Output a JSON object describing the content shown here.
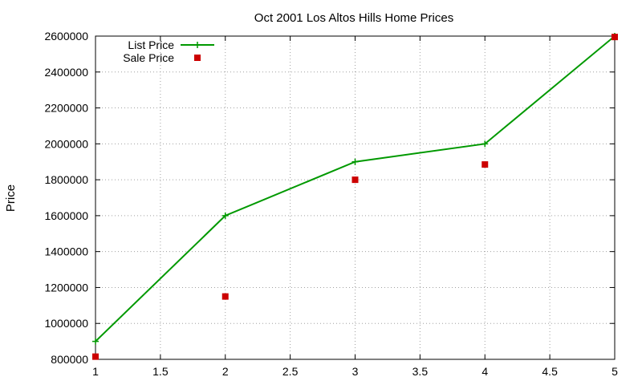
{
  "chart_data": {
    "type": "line",
    "title": "Oct 2001 Los Altos Hills Home Prices",
    "xlabel": "",
    "ylabel": "Price",
    "xlim": [
      1,
      5
    ],
    "ylim": [
      800000,
      2600000
    ],
    "x_ticks": [
      1,
      1.5,
      2,
      2.5,
      3,
      3.5,
      4,
      4.5,
      5
    ],
    "y_ticks": [
      800000,
      1000000,
      1200000,
      1400000,
      1600000,
      1800000,
      2000000,
      2200000,
      2400000,
      2600000
    ],
    "grid": true,
    "legend_position": "top-left",
    "series": [
      {
        "name": "List Price",
        "style": "lines+points",
        "marker": "plus",
        "color": "#009900",
        "x": [
          1,
          2,
          3,
          4,
          5
        ],
        "y": [
          900000,
          1600000,
          1900000,
          2000000,
          2600000
        ]
      },
      {
        "name": "Sale Price",
        "style": "points",
        "marker": "square",
        "color": "#cc0000",
        "x": [
          1,
          2,
          3,
          4,
          5
        ],
        "y": [
          815000,
          1150000,
          1800000,
          1885000,
          2595000
        ]
      }
    ]
  }
}
